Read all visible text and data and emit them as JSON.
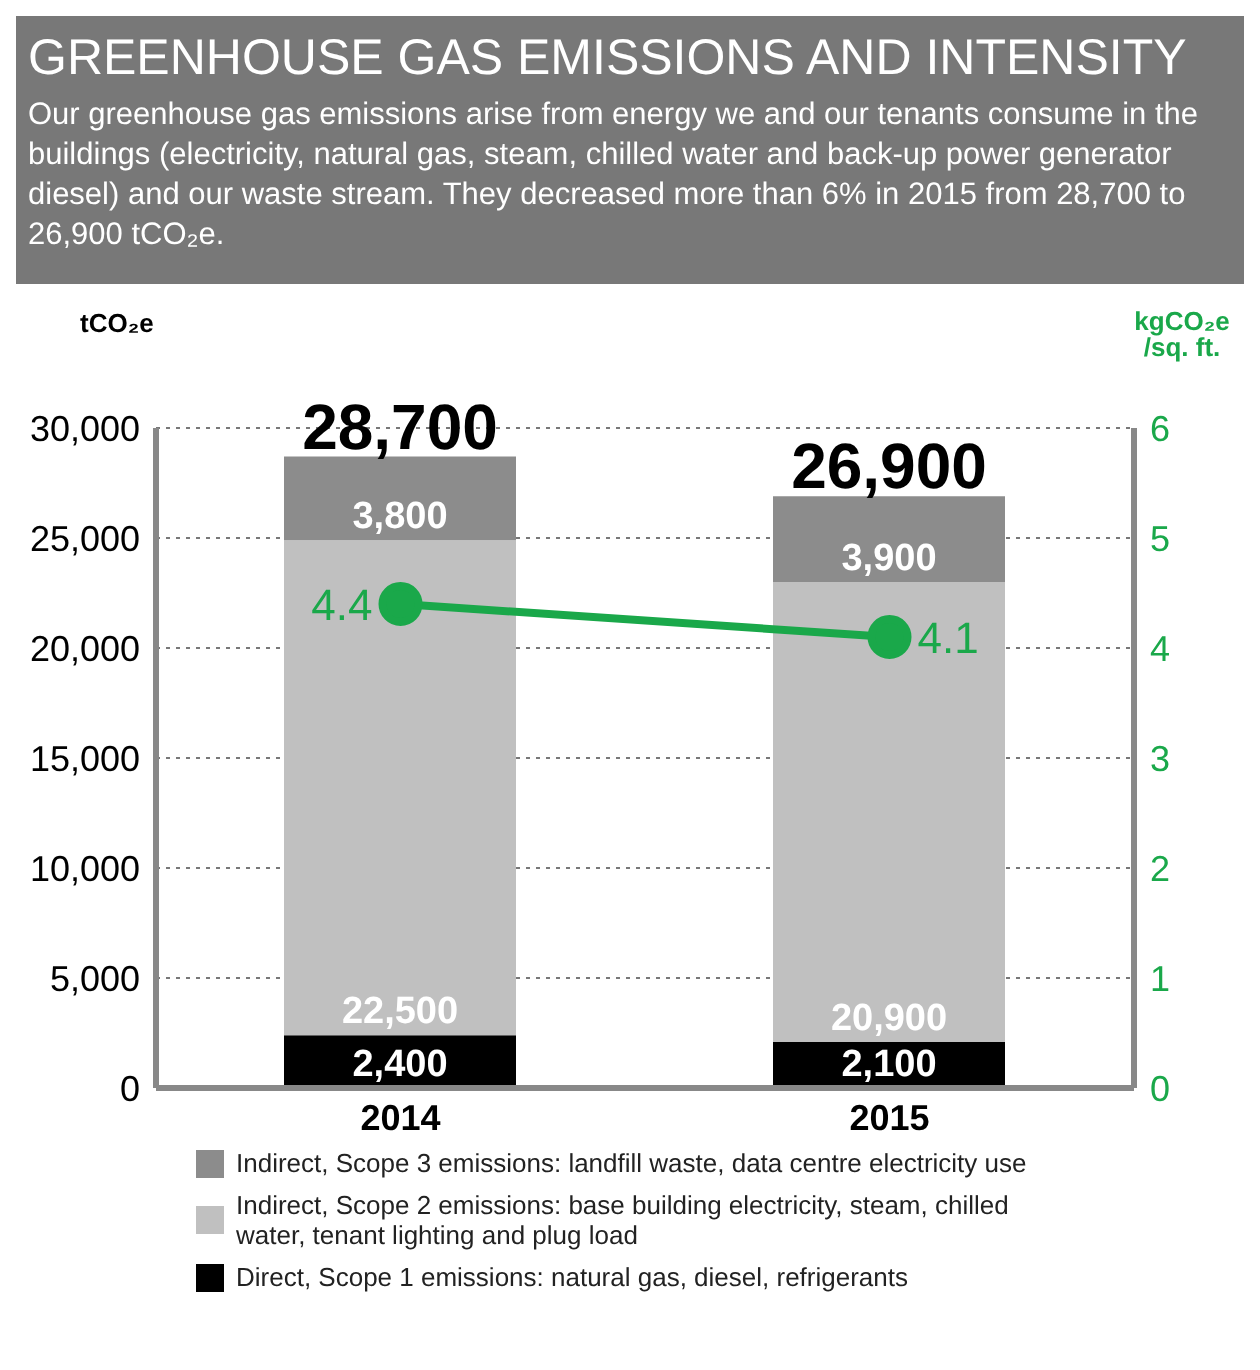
{
  "chart_data": {
    "type": "bar",
    "title": "GREENHOUSE GAS EMISSIONS AND INTENSITY",
    "subtitle": "Our greenhouse gas emissions arise from energy we and our tenants consume in the buildings (electricity, natural gas, steam, chilled water and back-up power generator diesel) and our waste stream. They decreased more than 6% in 2015 from 28,700 to 26,900 tCO₂e.",
    "ylabel": "tCO₂e",
    "y2label": "kgCO₂e /sq. ft.",
    "categories": [
      "2014",
      "2015"
    ],
    "stacked": true,
    "series": [
      {
        "name": "Direct, Scope 1 emissions: natural gas, diesel, refrigerants",
        "color": "#000000",
        "values": [
          2400,
          2100
        ],
        "value_labels": [
          "2,400",
          "2,100"
        ]
      },
      {
        "name": "Indirect, Scope 2 emissions: base building electricity, steam, chilled water, tenant lighting and plug load",
        "color": "#c0c0c0",
        "values": [
          22500,
          20900
        ],
        "value_labels": [
          "22,500",
          "20,900"
        ]
      },
      {
        "name": "Indirect, Scope 3 emissions: landfill waste, data centre electricity use",
        "color": "#8c8c8c",
        "values": [
          3800,
          3900
        ],
        "value_labels": [
          "3,800",
          "3,900"
        ]
      },
      {
        "type": "line",
        "axis": "y2",
        "color": "#1aa84a",
        "values": [
          4.4,
          4.1
        ]
      }
    ],
    "totals": [
      "28,700",
      "26,900"
    ],
    "data_labels": true,
    "marker": "circle",
    "ylim": [
      0,
      30000
    ],
    "yticks": [
      0,
      {
        "value": 5000,
        "label": "5,000"
      },
      {
        "value": 10000,
        "label": "10,000"
      },
      {
        "value": 15000,
        "label": "15,000"
      },
      {
        "value": 20000,
        "label": "20,000"
      },
      {
        "value": 25000,
        "label": "25,000"
      },
      {
        "value": 30000,
        "label": "30,000"
      }
    ],
    "y2lim": [
      0,
      6
    ],
    "y2ticks": [
      0,
      1,
      2,
      3,
      4,
      5,
      6
    ],
    "grid": "y",
    "legend": "bottom"
  }
}
